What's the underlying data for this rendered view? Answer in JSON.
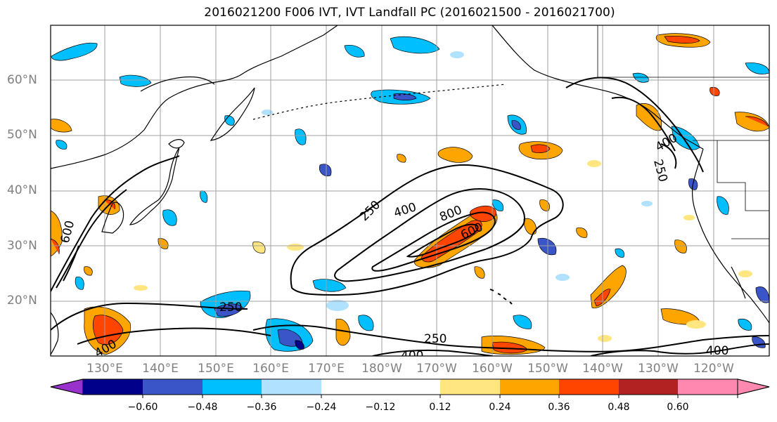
{
  "title": "2016021200 F006 IVT, IVT Landfall PC (2016021500 - 2016021700)",
  "map": {
    "lat_labels": [
      "60°N",
      "50°N",
      "40°N",
      "30°N",
      "20°N"
    ],
    "lon_labels": [
      "130°E",
      "140°E",
      "150°E",
      "160°E",
      "170°E",
      "180°W",
      "170°W",
      "160°W",
      "150°W",
      "140°W",
      "130°W",
      "120°W"
    ],
    "contour_labels": [
      "250",
      "400",
      "800",
      "600",
      "250",
      "400",
      "250",
      "400",
      "400",
      "250",
      "600",
      "400"
    ],
    "gridline_color": "#a0a0a0",
    "contour_color": "#000000"
  },
  "colorbar": {
    "tick_labels": [
      "−0.60",
      "−0.48",
      "−0.36",
      "−0.24",
      "−0.12",
      "0.12",
      "0.24",
      "0.36",
      "0.48",
      "0.60"
    ],
    "colors": [
      "#9932cc",
      "#00008b",
      "#3a55c8",
      "#00bfff",
      "#b0e2ff",
      "#ffffff",
      "#ffe680",
      "#ffa500",
      "#ff4500",
      "#b22222",
      "#ff88b0"
    ]
  }
}
